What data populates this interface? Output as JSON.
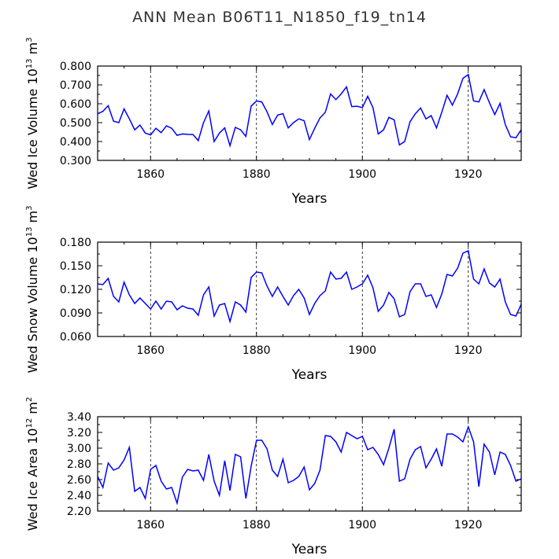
{
  "title": "ANN Mean  B06T11_N1850_f19_tn14",
  "x_years": [
    1850,
    1851,
    1852,
    1853,
    1854,
    1855,
    1856,
    1857,
    1858,
    1859,
    1860,
    1861,
    1862,
    1863,
    1864,
    1865,
    1866,
    1867,
    1868,
    1869,
    1870,
    1871,
    1872,
    1873,
    1874,
    1875,
    1876,
    1877,
    1878,
    1879,
    1880,
    1881,
    1882,
    1883,
    1884,
    1885,
    1886,
    1887,
    1888,
    1889,
    1890,
    1891,
    1892,
    1893,
    1894,
    1895,
    1896,
    1897,
    1898,
    1899,
    1900,
    1901,
    1902,
    1903,
    1904,
    1905,
    1906,
    1907,
    1908,
    1909,
    1910,
    1911,
    1912,
    1913,
    1914,
    1915,
    1916,
    1917,
    1918,
    1919,
    1920,
    1921,
    1922,
    1923,
    1924,
    1925,
    1926,
    1927,
    1928,
    1929,
    1930
  ],
  "chart_data": [
    {
      "type": "line",
      "xlabel": "Years",
      "ylabel_main": "Wed Ice Volume 10",
      "ylabel_exp": "13",
      "ylabel_unit": " m",
      "ylabel_unit_exp": "3",
      "xlim": [
        1850,
        1930
      ],
      "ylim": [
        0.3,
        0.8
      ],
      "xticks": [
        "1860",
        "1880",
        "1900",
        "1920"
      ],
      "xtick_values": [
        1860,
        1880,
        1900,
        1920
      ],
      "yticks": [
        "0.300",
        "0.400",
        "0.500",
        "0.600",
        "0.700",
        "0.800"
      ],
      "ytick_values": [
        0.3,
        0.4,
        0.5,
        0.6,
        0.7,
        0.8
      ],
      "vlines": [
        1860,
        1880,
        1900,
        1920
      ],
      "color": "#0000ff",
      "values": [
        0.547,
        0.56,
        0.59,
        0.508,
        0.5,
        0.573,
        0.52,
        0.462,
        0.487,
        0.445,
        0.435,
        0.47,
        0.447,
        0.483,
        0.47,
        0.433,
        0.44,
        0.438,
        0.437,
        0.405,
        0.5,
        0.562,
        0.4,
        0.445,
        0.472,
        0.378,
        0.475,
        0.462,
        0.427,
        0.588,
        0.615,
        0.61,
        0.557,
        0.49,
        0.54,
        0.548,
        0.472,
        0.5,
        0.52,
        0.51,
        0.41,
        0.47,
        0.525,
        0.555,
        0.652,
        0.622,
        0.652,
        0.69,
        0.585,
        0.587,
        0.58,
        0.64,
        0.58,
        0.44,
        0.462,
        0.528,
        0.515,
        0.382,
        0.4,
        0.505,
        0.547,
        0.578,
        0.52,
        0.537,
        0.472,
        0.555,
        0.645,
        0.593,
        0.653,
        0.735,
        0.755,
        0.615,
        0.61,
        0.675,
        0.605,
        0.543,
        0.602,
        0.49,
        0.425,
        0.42,
        0.462
      ]
    },
    {
      "type": "line",
      "xlabel": "Years",
      "ylabel_main": "Wed Snow Volume 10",
      "ylabel_exp": "13",
      "ylabel_unit": " m",
      "ylabel_unit_exp": "3",
      "xlim": [
        1850,
        1930
      ],
      "ylim": [
        0.06,
        0.18
      ],
      "xticks": [
        "1860",
        "1880",
        "1900",
        "1920"
      ],
      "xtick_values": [
        1860,
        1880,
        1900,
        1920
      ],
      "yticks": [
        "0.060",
        "0.090",
        "0.120",
        "0.150",
        "0.180"
      ],
      "ytick_values": [
        0.06,
        0.09,
        0.12,
        0.15,
        0.18
      ],
      "vlines": [
        1860,
        1880,
        1900,
        1920
      ],
      "color": "#0000ff",
      "values": [
        0.127,
        0.126,
        0.134,
        0.111,
        0.104,
        0.129,
        0.113,
        0.102,
        0.109,
        0.102,
        0.095,
        0.105,
        0.095,
        0.105,
        0.104,
        0.094,
        0.099,
        0.096,
        0.095,
        0.087,
        0.113,
        0.123,
        0.086,
        0.1,
        0.102,
        0.079,
        0.104,
        0.1,
        0.091,
        0.135,
        0.142,
        0.141,
        0.124,
        0.111,
        0.123,
        0.111,
        0.1,
        0.112,
        0.12,
        0.109,
        0.088,
        0.102,
        0.112,
        0.118,
        0.142,
        0.133,
        0.134,
        0.142,
        0.12,
        0.123,
        0.127,
        0.138,
        0.122,
        0.092,
        0.1,
        0.116,
        0.108,
        0.085,
        0.088,
        0.117,
        0.127,
        0.127,
        0.111,
        0.113,
        0.097,
        0.114,
        0.139,
        0.137,
        0.147,
        0.166,
        0.169,
        0.133,
        0.127,
        0.146,
        0.128,
        0.123,
        0.133,
        0.104,
        0.088,
        0.086,
        0.101
      ]
    },
    {
      "type": "line",
      "xlabel": "Years",
      "ylabel_main": "Wed Ice Area 10",
      "ylabel_exp": "12",
      "ylabel_unit": " m",
      "ylabel_unit_exp": "2",
      "xlim": [
        1850,
        1930
      ],
      "ylim": [
        2.2,
        3.4
      ],
      "xticks": [
        "1860",
        "1880",
        "1900",
        "1920"
      ],
      "xtick_values": [
        1860,
        1880,
        1900,
        1920
      ],
      "yticks": [
        "2.20",
        "2.40",
        "2.60",
        "2.80",
        "3.00",
        "3.20",
        "3.40"
      ],
      "ytick_values": [
        2.2,
        2.4,
        2.6,
        2.8,
        3.0,
        3.2,
        3.4
      ],
      "vlines": [
        1860,
        1880,
        1900,
        1920
      ],
      "color": "#0000ff",
      "values": [
        2.64,
        2.5,
        2.81,
        2.72,
        2.75,
        2.85,
        3.01,
        2.45,
        2.5,
        2.36,
        2.73,
        2.78,
        2.58,
        2.48,
        2.5,
        2.3,
        2.63,
        2.73,
        2.71,
        2.72,
        2.59,
        2.92,
        2.58,
        2.4,
        2.84,
        2.46,
        2.92,
        2.89,
        2.36,
        2.77,
        3.1,
        3.1,
        2.99,
        2.72,
        2.64,
        2.86,
        2.56,
        2.59,
        2.64,
        2.76,
        2.47,
        2.55,
        2.72,
        3.16,
        3.15,
        3.08,
        2.95,
        3.2,
        3.16,
        3.12,
        3.15,
        2.98,
        3.01,
        2.92,
        2.79,
        3.0,
        3.24,
        2.58,
        2.61,
        2.86,
        2.98,
        3.02,
        2.75,
        2.86,
        2.99,
        2.77,
        3.18,
        3.18,
        3.14,
        3.08,
        3.27,
        3.08,
        2.51,
        3.05,
        2.95,
        2.66,
        2.95,
        2.92,
        2.78,
        2.58,
        2.61
      ]
    }
  ]
}
